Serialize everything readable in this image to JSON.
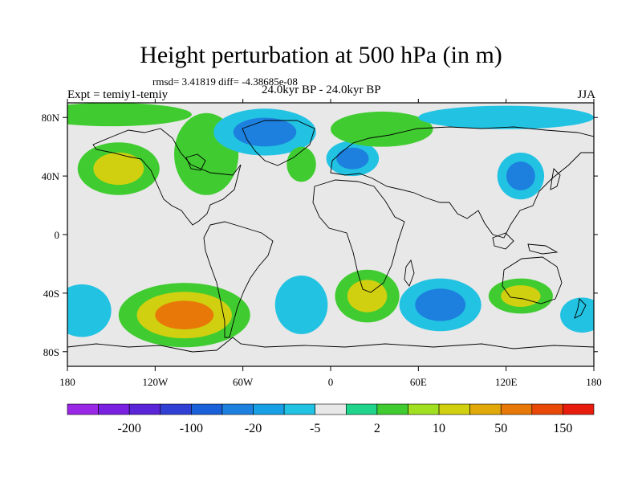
{
  "chart_data": {
    "type": "heatmap",
    "title": "Height perturbation at 500 hPa (in m)",
    "stats": "rmsd= 3.41819 diff= -4.38685e-08",
    "experiment": "Expt = temiy1-temiy",
    "period": "24.0kyr BP - 24.0kyr BP",
    "season": "JJA",
    "projection": "cylindrical equidistant",
    "xlim": [
      -180,
      180
    ],
    "ylim": [
      -90,
      90
    ],
    "x_ticks": [
      {
        "value": -180,
        "label": "180"
      },
      {
        "value": -120,
        "label": "120W"
      },
      {
        "value": -60,
        "label": "60W"
      },
      {
        "value": 0,
        "label": "0"
      },
      {
        "value": 60,
        "label": "60E"
      },
      {
        "value": 120,
        "label": "120E"
      },
      {
        "value": 180,
        "label": "180"
      }
    ],
    "y_ticks": [
      {
        "value": 80,
        "label": "80N"
      },
      {
        "value": 40,
        "label": "40N"
      },
      {
        "value": 0,
        "label": "0"
      },
      {
        "value": -40,
        "label": "40S"
      },
      {
        "value": -80,
        "label": "80S"
      }
    ],
    "background_color": "#e8e8e8",
    "colorbar": {
      "colors": [
        "#9a26e6",
        "#7a20e0",
        "#5a24d8",
        "#3040d4",
        "#1a60d8",
        "#1d80de",
        "#18a0e6",
        "#22c2e2",
        "#e8e8e8",
        "#20d48c",
        "#40cc30",
        "#a0e020",
        "#d0d010",
        "#e0a808",
        "#e87808",
        "#e84808",
        "#e81c0c"
      ],
      "labels": [
        {
          "after_index": 1,
          "text": "-200"
        },
        {
          "after_index": 3,
          "text": "-100"
        },
        {
          "after_index": 5,
          "text": "-20"
        },
        {
          "after_index": 7,
          "text": "-5"
        },
        {
          "after_index": 9,
          "text": "2"
        },
        {
          "after_index": 11,
          "text": "10"
        },
        {
          "after_index": 13,
          "text": "50"
        },
        {
          "after_index": 15,
          "text": "150"
        }
      ]
    },
    "anomaly_regions": [
      {
        "region": "NE Pacific",
        "lon": -145,
        "lat": 45,
        "lon_r": 28,
        "lat_r": 18,
        "levels": [
          2,
          10
        ]
      },
      {
        "region": "Arctic Pacific",
        "lon": -150,
        "lat": 82,
        "lon_r": 55,
        "lat_r": 8,
        "levels": [
          2
        ]
      },
      {
        "region": "N Canada",
        "lon": -85,
        "lat": 55,
        "lon_r": 22,
        "lat_r": 28,
        "levels": [
          2
        ]
      },
      {
        "region": "Greenland",
        "lon": -45,
        "lat": 70,
        "lon_r": 35,
        "lat_r": 16,
        "levels": [
          -5,
          -20
        ]
      },
      {
        "region": "N Atlantic",
        "lon": -20,
        "lat": 48,
        "lon_r": 10,
        "lat_r": 12,
        "levels": [
          2
        ]
      },
      {
        "region": "Europe",
        "lon": 15,
        "lat": 52,
        "lon_r": 18,
        "lat_r": 12,
        "levels": [
          -5,
          -20
        ]
      },
      {
        "region": "N Siberia",
        "lon": 35,
        "lat": 72,
        "lon_r": 35,
        "lat_r": 12,
        "levels": [
          2
        ]
      },
      {
        "region": "Arctic E",
        "lon": 120,
        "lat": 80,
        "lon_r": 60,
        "lat_r": 8,
        "levels": [
          -5
        ]
      },
      {
        "region": "E Asia",
        "lon": 130,
        "lat": 40,
        "lon_r": 16,
        "lat_r": 16,
        "levels": [
          -5,
          -20
        ]
      },
      {
        "region": "SE Pacific",
        "lon": -100,
        "lat": -55,
        "lon_r": 45,
        "lat_r": 22,
        "levels": [
          2,
          10,
          50
        ]
      },
      {
        "region": "S Pacific W",
        "lon": -170,
        "lat": -52,
        "lon_r": 20,
        "lat_r": 18,
        "levels": [
          -5
        ]
      },
      {
        "region": "S Atlantic",
        "lon": -20,
        "lat": -48,
        "lon_r": 18,
        "lat_r": 20,
        "levels": [
          -5
        ]
      },
      {
        "region": "S Africa",
        "lon": 25,
        "lat": -42,
        "lon_r": 22,
        "lat_r": 18,
        "levels": [
          2,
          10
        ]
      },
      {
        "region": "S Indian Ocean",
        "lon": 75,
        "lat": -48,
        "lon_r": 28,
        "lat_r": 18,
        "levels": [
          -5,
          -20
        ]
      },
      {
        "region": "Australia S",
        "lon": 130,
        "lat": -42,
        "lon_r": 22,
        "lat_r": 12,
        "levels": [
          2,
          10
        ]
      },
      {
        "region": "S Pacific E",
        "lon": 172,
        "lat": -55,
        "lon_r": 15,
        "lat_r": 12,
        "levels": [
          -5
        ]
      }
    ]
  }
}
